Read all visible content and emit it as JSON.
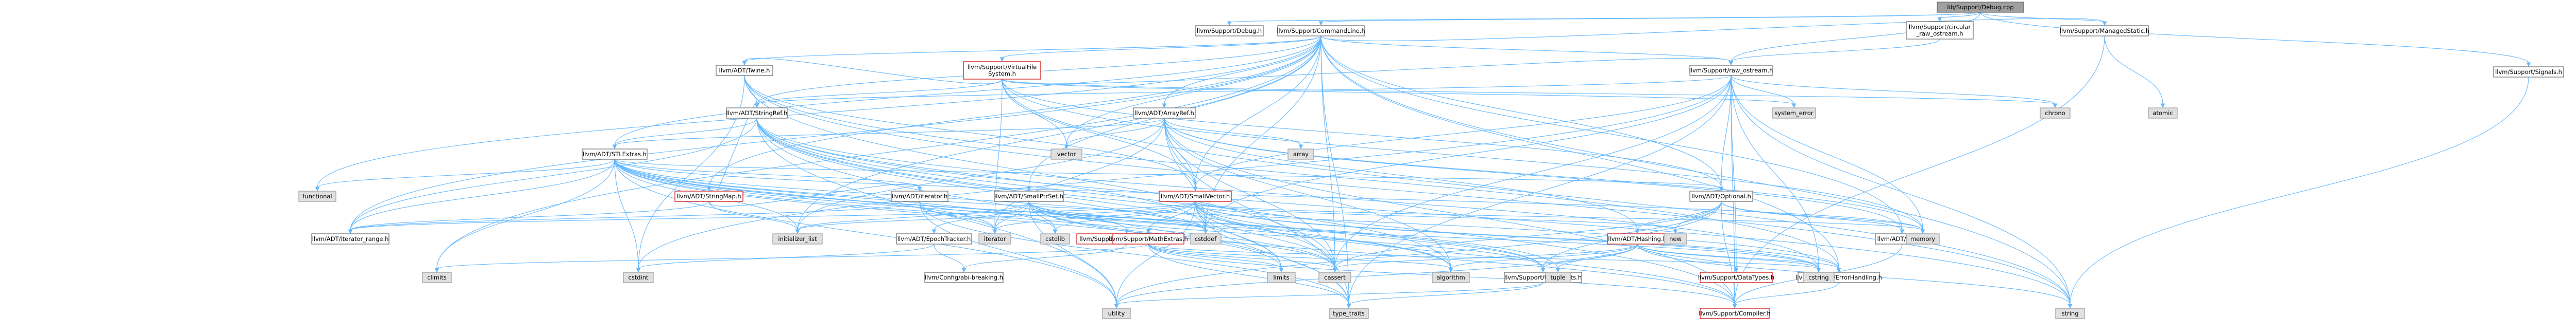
{
  "diagram": {
    "nodes": [
      {
        "id": "root",
        "label": "lib/Support/Debug.cpp",
        "kind": "root"
      },
      {
        "id": "debug_h",
        "label": "llvm/Support/Debug.h",
        "kind": "file"
      },
      {
        "id": "cmdline",
        "label": "llvm/Support/CommandLine.h",
        "kind": "file"
      },
      {
        "id": "circular",
        "label": "llvm/Support/circular\n_raw_ostream.h",
        "kind": "file"
      },
      {
        "id": "managedstatic",
        "label": "llvm/Support/ManagedStatic.h",
        "kind": "file"
      },
      {
        "id": "signals",
        "label": "llvm/Support/Signals.h",
        "kind": "file"
      },
      {
        "id": "vfs",
        "label": "llvm/Support/VirtualFile\nSystem.h",
        "kind": "file-red"
      },
      {
        "id": "twine",
        "label": "llvm/ADT/Twine.h",
        "kind": "file"
      },
      {
        "id": "raw_ostream",
        "label": "llvm/Support/raw_ostream.h",
        "kind": "file"
      },
      {
        "id": "arrayref",
        "label": "llvm/ADT/ArrayRef.h",
        "kind": "file"
      },
      {
        "id": "stringref",
        "label": "llvm/ADT/StringRef.h",
        "kind": "file"
      },
      {
        "id": "stlextras",
        "label": "llvm/ADT/STLExtras.h",
        "kind": "file"
      },
      {
        "id": "stringmap",
        "label": "llvm/ADT/StringMap.h",
        "kind": "file-red"
      },
      {
        "id": "iterator",
        "label": "llvm/ADT/iterator.h",
        "kind": "file"
      },
      {
        "id": "smallptrset",
        "label": "llvm/ADT/SmallPtrSet.h",
        "kind": "file"
      },
      {
        "id": "smallvector",
        "label": "llvm/ADT/SmallVector.h",
        "kind": "file-red"
      },
      {
        "id": "optional",
        "label": "llvm/ADT/Optional.h",
        "kind": "file"
      },
      {
        "id": "iterator_range",
        "label": "llvm/ADT/iterator_range.h",
        "kind": "file"
      },
      {
        "id": "epochtracker",
        "label": "llvm/ADT/EpochTracker.h",
        "kind": "file"
      },
      {
        "id": "reverseiteration",
        "label": "llvm/Support/ReverseIteration.h",
        "kind": "file-red"
      },
      {
        "id": "mathextras",
        "label": "llvm/Support/MathExtras.h",
        "kind": "file-red"
      },
      {
        "id": "hashing",
        "label": "llvm/ADT/Hashing.h",
        "kind": "file-red"
      },
      {
        "id": "none",
        "label": "llvm/ADT/None.h",
        "kind": "file"
      },
      {
        "id": "configabi",
        "label": "llvm/Config/abi-breaking.h",
        "kind": "file"
      },
      {
        "id": "datatypes",
        "label": "llvm/Support/DataTypes.h",
        "kind": "file-red"
      },
      {
        "id": "errorhandling",
        "label": "llvm/Support/ErrorHandling.h",
        "kind": "file"
      },
      {
        "id": "type_traits_llvm",
        "label": "llvm/Support/type_traits.h",
        "kind": "file"
      },
      {
        "id": "compiler",
        "label": "llvm/Support/Compiler.h",
        "kind": "file-red"
      },
      {
        "id": "chrono",
        "label": "chrono",
        "kind": "sys"
      },
      {
        "id": "system_error",
        "label": "system_error",
        "kind": "sys"
      },
      {
        "id": "atomic",
        "label": "atomic",
        "kind": "sys"
      },
      {
        "id": "vector",
        "label": "vector",
        "kind": "sys"
      },
      {
        "id": "array",
        "label": "array",
        "kind": "sys"
      },
      {
        "id": "functional",
        "label": "functional",
        "kind": "sys"
      },
      {
        "id": "initializer_list",
        "label": "initializer_list",
        "kind": "sys"
      },
      {
        "id": "iterator_sys",
        "label": "iterator",
        "kind": "sys"
      },
      {
        "id": "cstdlib",
        "label": "cstdlib",
        "kind": "sys"
      },
      {
        "id": "cstddef",
        "label": "cstddef",
        "kind": "sys"
      },
      {
        "id": "new",
        "label": "new",
        "kind": "sys"
      },
      {
        "id": "memory",
        "label": "memory",
        "kind": "sys"
      },
      {
        "id": "climits",
        "label": "climits",
        "kind": "sys"
      },
      {
        "id": "cstdint",
        "label": "cstdint",
        "kind": "sys"
      },
      {
        "id": "cassert",
        "label": "cassert",
        "kind": "sys"
      },
      {
        "id": "limits",
        "label": "limits",
        "kind": "sys"
      },
      {
        "id": "algorithm",
        "label": "algorithm",
        "kind": "sys"
      },
      {
        "id": "tuple",
        "label": "tuple",
        "kind": "sys"
      },
      {
        "id": "cstring",
        "label": "cstring",
        "kind": "sys"
      },
      {
        "id": "utility",
        "label": "utility",
        "kind": "sys"
      },
      {
        "id": "type_traits",
        "label": "type_traits",
        "kind": "sys"
      },
      {
        "id": "string",
        "label": "string",
        "kind": "sys"
      }
    ]
  }
}
